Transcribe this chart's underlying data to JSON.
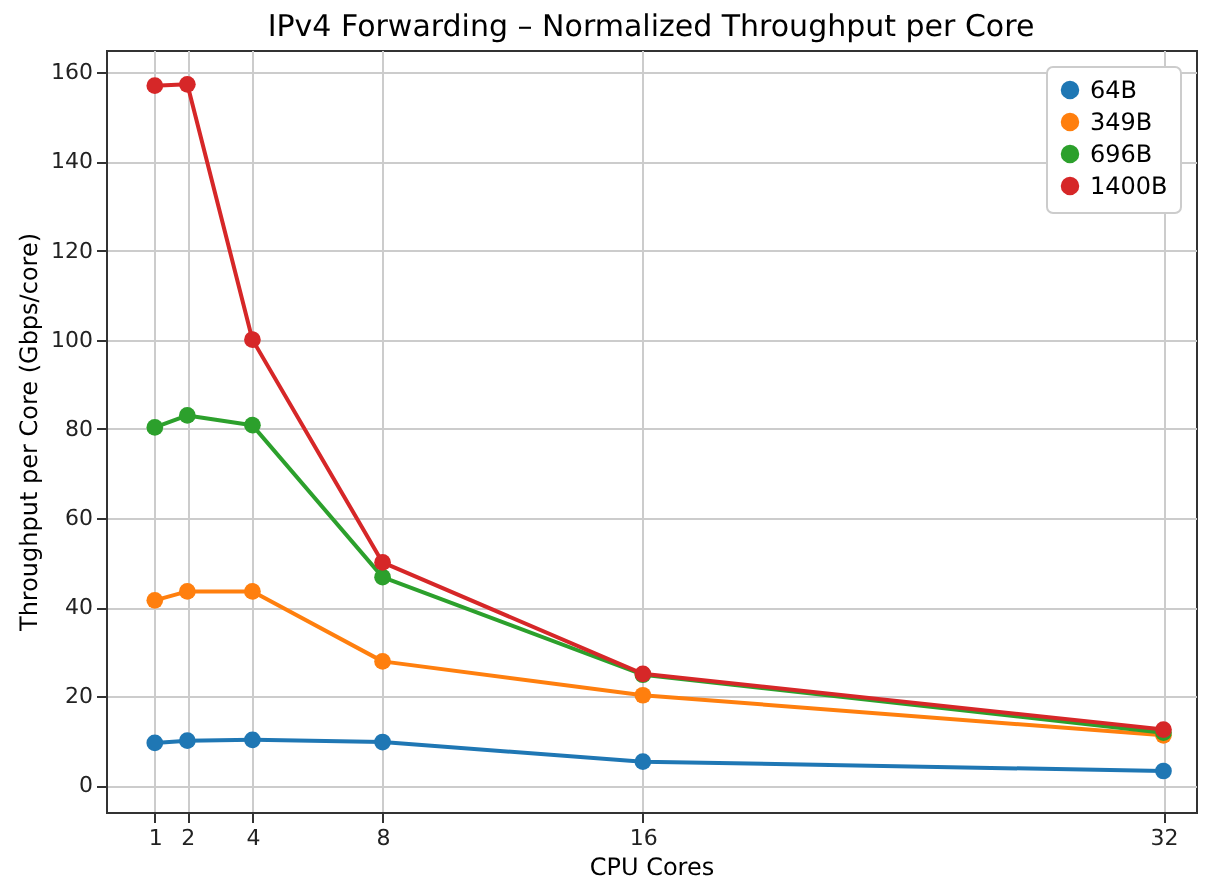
{
  "chart_data": {
    "type": "line",
    "title": "IPv4 Forwarding – Normalized Throughput per Core",
    "xlabel": "CPU Cores",
    "ylabel": "Throughput per Core (Gbps/core)",
    "x": [
      1,
      2,
      4,
      8,
      16,
      32
    ],
    "series": [
      {
        "name": "64B",
        "color": "#1f77b4",
        "values": [
          9.5,
          10,
          10.2,
          9.7,
          5.3,
          3.2
        ]
      },
      {
        "name": "349B",
        "color": "#ff7f0e",
        "values": [
          41.5,
          43.5,
          43.5,
          27.8,
          20.2,
          11.2
        ]
      },
      {
        "name": "696B",
        "color": "#2ca02c",
        "values": [
          80.3,
          83,
          80.8,
          46.7,
          24.8,
          11.8
        ]
      },
      {
        "name": "1400B",
        "color": "#d62728",
        "values": [
          157,
          157.3,
          100,
          50,
          25,
          12.5
        ]
      }
    ],
    "xlim": [
      -0.5,
      33
    ],
    "ylim": [
      -6,
      165
    ],
    "xticks": [
      1,
      2,
      4,
      8,
      16,
      32
    ],
    "yticks": [
      0,
      20,
      40,
      60,
      80,
      100,
      120,
      140,
      160
    ],
    "grid": true,
    "legend": "top right",
    "marker": "circle",
    "line_style": "solid"
  }
}
